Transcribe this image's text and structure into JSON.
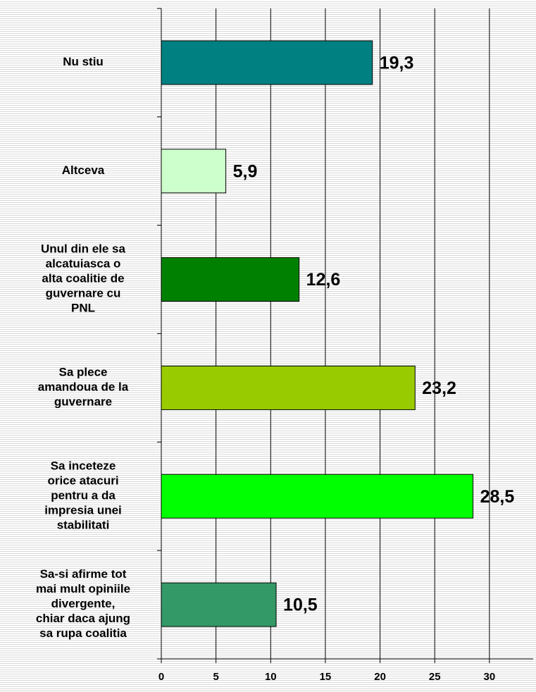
{
  "chart_data": {
    "type": "bar",
    "orientation": "horizontal",
    "categories": [
      [
        "Nu stiu"
      ],
      [
        "Altceva"
      ],
      [
        "Unul din ele sa",
        "alcatuiasca o",
        "alta coalitie de",
        "guvernare cu",
        "PNL"
      ],
      [
        "Sa plece",
        "amandoua de la",
        "guvernare"
      ],
      [
        "Sa inceteze",
        "orice atacuri",
        "pentru a da",
        "impresia unei",
        "stabilitati"
      ],
      [
        "Sa-si afirme tot",
        "mai mult opiniile",
        "divergente,",
        "chiar daca ajung",
        "sa rupa coalitia"
      ]
    ],
    "values": [
      19.3,
      5.9,
      12.6,
      23.2,
      28.5,
      10.5
    ],
    "value_labels": [
      "19,3",
      "5,9",
      "12,6",
      "23,2",
      "28,5",
      "10,5"
    ],
    "colors": [
      "#008080",
      "#ccffcc",
      "#008000",
      "#99cc00",
      "#00ff00",
      "#339966"
    ],
    "xlim": [
      0,
      34
    ],
    "xticks": [
      0,
      5,
      10,
      15,
      20,
      25,
      30
    ],
    "grid": true
  }
}
